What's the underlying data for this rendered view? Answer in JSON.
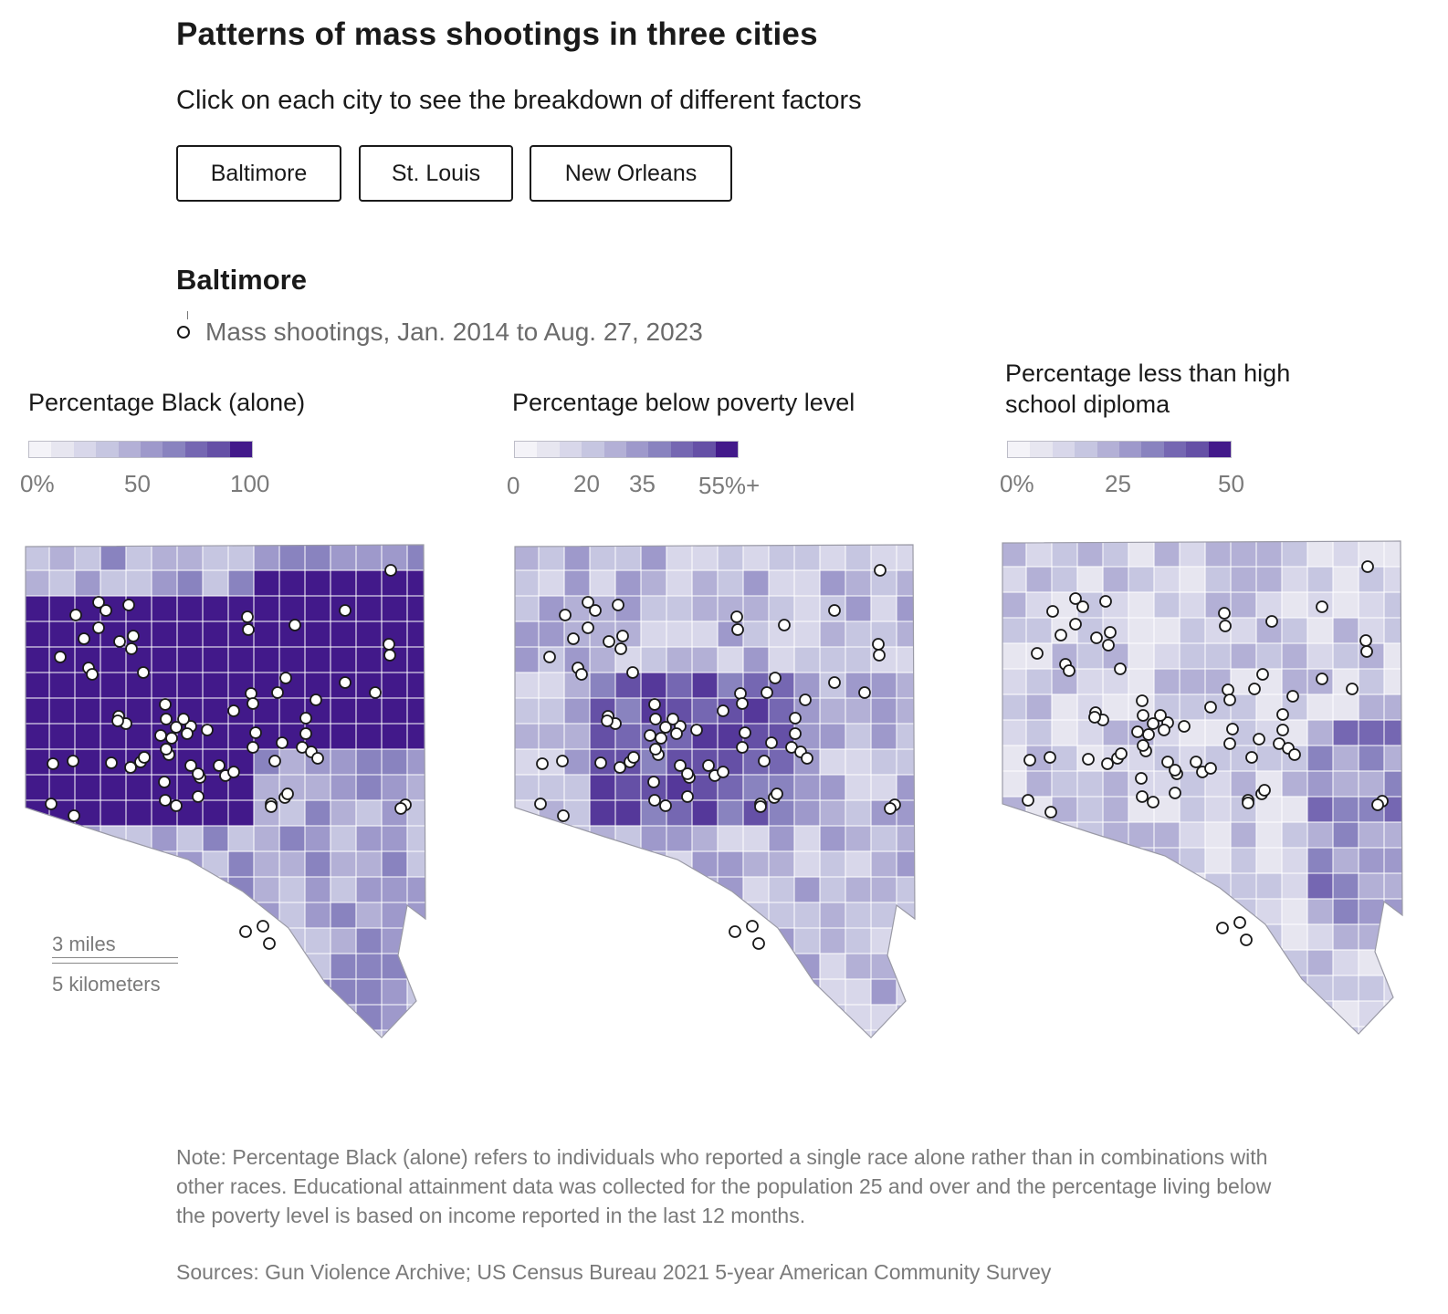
{
  "header": {
    "title": "Patterns of mass shootings in three cities",
    "subtitle": "Click on each city to see the breakdown of different factors"
  },
  "city_buttons": [
    {
      "label": "Baltimore"
    },
    {
      "label": "St. Louis"
    },
    {
      "label": "New Orleans"
    }
  ],
  "selected_city": "Baltimore",
  "key": {
    "label": "Mass shootings, Jan. 2014 to Aug. 27, 2023"
  },
  "colors": {
    "scale": [
      "#f4f3f8",
      "#e7e6f0",
      "#d8d7ea",
      "#c6c6e1",
      "#b3b0d6",
      "#9e99cb",
      "#8983bf",
      "#7567b2",
      "#6550a6",
      "#55389a",
      "#42198a"
    ],
    "boundary": "#ffffff",
    "outline": "#9a9aa6",
    "marker_fill": "#ffffff",
    "marker_stroke": "#1a1a1a"
  },
  "panels": [
    {
      "title": "Percentage Black (alone)",
      "ticks": [
        "0%",
        "50",
        "100"
      ],
      "level": "high"
    },
    {
      "title": "Percentage below poverty level",
      "ticks": [
        "0",
        "20",
        "35",
        "55%+"
      ],
      "level": "medium"
    },
    {
      "title": "Percentage less than high school diploma",
      "ticks": [
        "0%",
        "25",
        "50"
      ],
      "level": "low"
    }
  ],
  "scale_bar": {
    "miles": "3 miles",
    "km": "5 kilometers"
  },
  "note": "Note: Percentage Black (alone) refers to individuals who reported a single race alone rather than in combinations with other races. Educational attainment data was collected for the population 25 and over and the percentage living below the poverty level is based on income reported in the last 12 months.",
  "sources": "Sources: Gun Violence Archive; US Census Bureau 2021 5-year American Community Survey"
}
